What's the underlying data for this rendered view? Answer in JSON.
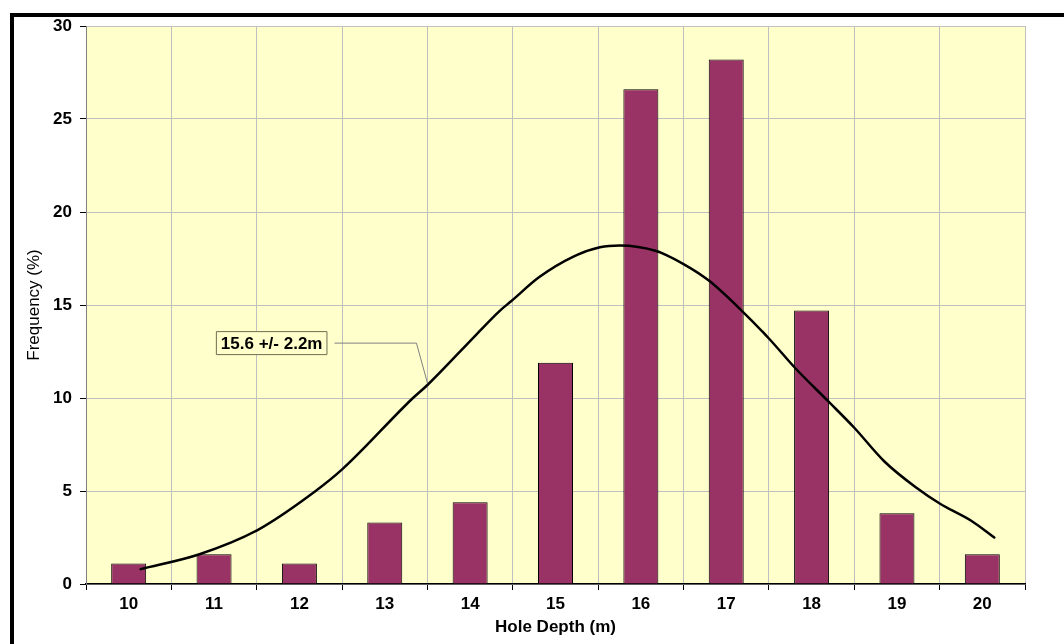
{
  "chart_data": {
    "type": "bar",
    "xlabel": "Hole Depth (m)",
    "ylabel": "Frequency (%)",
    "x": [
      10,
      11,
      12,
      13,
      14,
      15,
      16,
      17,
      18,
      19,
      20
    ],
    "series": [
      {
        "color": "#993366",
        "values": [
          1.1,
          1.6,
          1.1,
          3.3,
          4.4,
          11.9,
          26.6,
          28.2,
          14.7,
          3.8,
          1.6
        ]
      },
      {
        "type": "line",
        "color": "#000000",
        "x": [
          10.14,
          10.83,
          11.51,
          12.19,
          12.51,
          13.33,
          13.5,
          14.07,
          14.35,
          14.48,
          14.81,
          15.21,
          15.52,
          15.75,
          16.18,
          16.5,
          16.8,
          17.18,
          17.5,
          17.81,
          18.2,
          18.5,
          18.85,
          19.22,
          19.51,
          19.87,
          20.14
        ],
        "values": [
          0.8,
          1.6,
          2.9,
          5.0,
          6.2,
          10.0,
          10.7,
          13.4,
          14.7,
          15.2,
          16.5,
          17.6,
          18.1,
          18.2,
          17.9,
          17.2,
          16.3,
          14.7,
          13.2,
          11.6,
          9.8,
          8.4,
          6.6,
          5.2,
          4.3,
          3.4,
          2.5
        ]
      }
    ],
    "xlim": [
      9.5,
      20.5
    ],
    "xticks": [
      10,
      11,
      12,
      13,
      14,
      15,
      16,
      17,
      18,
      19,
      20
    ],
    "ylim": [
      0,
      30
    ],
    "yticks": [
      0,
      5,
      10,
      15,
      20,
      25,
      30
    ],
    "grid": true,
    "annotations": [
      {
        "text": "15.6 +/- 2.2m",
        "x": 13.5,
        "y": 10.8
      }
    ]
  }
}
